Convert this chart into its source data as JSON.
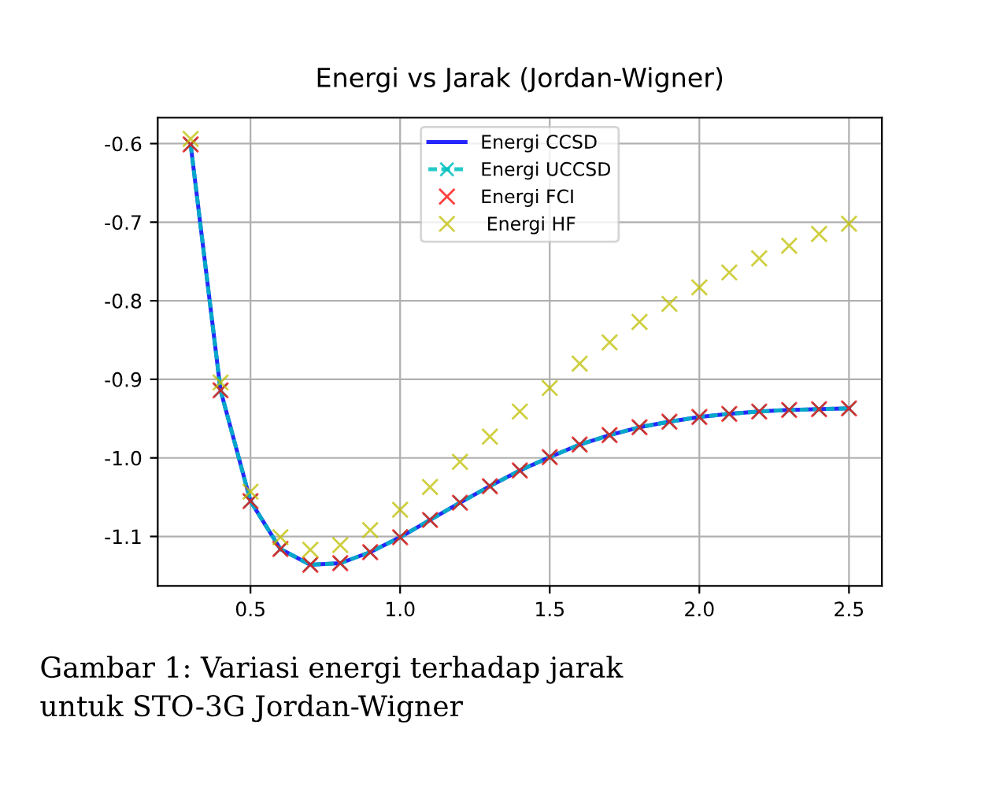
{
  "chart_data": {
    "type": "line",
    "title": "Energi vs Jarak (Jordan-Wigner)",
    "x": [
      0.3,
      0.4,
      0.5,
      0.6,
      0.7,
      0.8,
      0.9,
      1.0,
      1.1,
      1.2,
      1.3,
      1.4,
      1.5,
      1.6,
      1.7,
      1.8,
      1.9,
      2.0,
      2.1,
      2.2,
      2.3,
      2.4,
      2.5
    ],
    "series": [
      {
        "name": "Energi CCSD",
        "color": "#0000ff",
        "line_style": "solid",
        "marker": "none",
        "values": [
          -0.601,
          -0.914,
          -1.055,
          -1.116,
          -1.136,
          -1.134,
          -1.12,
          -1.101,
          -1.079,
          -1.057,
          -1.036,
          -1.016,
          -0.999,
          -0.983,
          -0.971,
          -0.961,
          -0.954,
          -0.948,
          -0.944,
          -0.941,
          -0.939,
          -0.938,
          -0.937
        ]
      },
      {
        "name": "Energi UCCSD",
        "type": "line",
        "color": "#00bfbf",
        "line_style": "dashed",
        "marker": "cross",
        "values": [
          -0.601,
          -0.914,
          -1.055,
          -1.116,
          -1.136,
          -1.134,
          -1.12,
          -1.101,
          -1.079,
          -1.057,
          -1.036,
          -1.016,
          -0.999,
          -0.983,
          -0.971,
          -0.961,
          -0.954,
          -0.948,
          -0.944,
          -0.941,
          -0.939,
          -0.938,
          -0.937
        ]
      },
      {
        "name": "Energi FCI",
        "type": "scatter",
        "color": "#ff0000",
        "marker": "cross",
        "values": [
          -0.601,
          -0.914,
          -1.055,
          -1.116,
          -1.136,
          -1.134,
          -1.12,
          -1.101,
          -1.079,
          -1.057,
          -1.036,
          -1.016,
          -0.999,
          -0.983,
          -0.971,
          -0.961,
          -0.954,
          -0.948,
          -0.944,
          -0.941,
          -0.939,
          -0.938,
          -0.937
        ]
      },
      {
        "name": " Energi HF",
        "type": "scatter",
        "color": "#bfbf00",
        "marker": "cross",
        "values": [
          -0.594,
          -0.904,
          -1.043,
          -1.101,
          -1.117,
          -1.111,
          -1.092,
          -1.066,
          -1.037,
          -1.005,
          -0.973,
          -0.941,
          -0.911,
          -0.88,
          -0.853,
          -0.827,
          -0.804,
          -0.783,
          -0.764,
          -0.746,
          -0.73,
          -0.715,
          -0.702
        ]
      }
    ],
    "xlim": [
      0.19,
      2.61
    ],
    "ylim": [
      -1.163,
      -0.567
    ],
    "xticks": [
      0.5,
      {
        "value": 1,
        "label": "1.0"
      },
      1.5,
      {
        "value": 2,
        "label": "2.0"
      },
      2.5
    ],
    "yticks": [
      -1.1,
      {
        "value": -1,
        "label": "-1.0"
      },
      -0.9,
      -0.8,
      -0.7,
      -0.6
    ],
    "grid": true,
    "legend": "top",
    "annotations": [
      "Gambar 1: Variasi energi terhadap jarak\nuntuk STO-3G Jordan-Wigner"
    ]
  }
}
